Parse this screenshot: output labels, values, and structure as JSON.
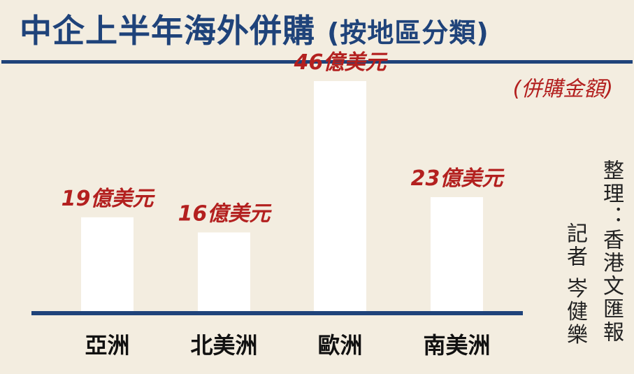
{
  "chart_data": {
    "type": "bar",
    "title": "中企上半年海外併購",
    "subtitle": "(按地區分類)",
    "unit_label": "(併購金額)",
    "categories": [
      "亞洲",
      "北美洲",
      "歐洲",
      "南美洲"
    ],
    "values": [
      19,
      16,
      46,
      23
    ],
    "data_labels": [
      "19億美元",
      "16億美元",
      "46億美元",
      "23億美元"
    ],
    "ylim": [
      0,
      46
    ],
    "grid": false,
    "colors": {
      "bar": "#ffffff",
      "axis": "#1f437a",
      "label": "#b3201f",
      "title": "#1f437a",
      "background": "#f3ede0"
    }
  },
  "credits": {
    "line1": "整理：香港文匯報",
    "line2": "記者 岑健樂"
  }
}
